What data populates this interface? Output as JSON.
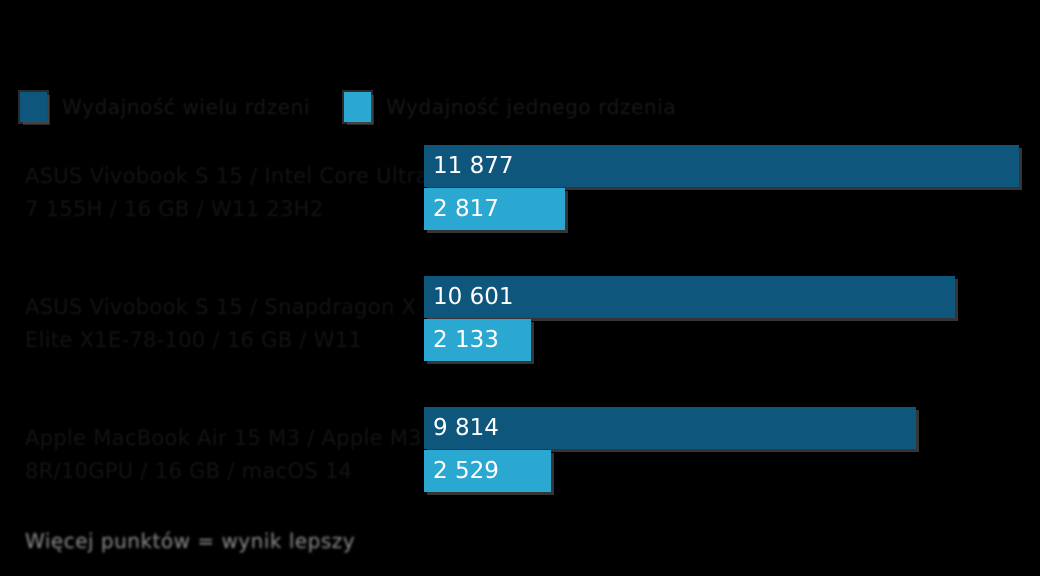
{
  "legend": {
    "items": [
      {
        "label": "Wydajność wielu rdzeni",
        "color": "#0E567C"
      },
      {
        "label": "Wydajność jednego rdzenia",
        "color": "#2BA8D2"
      }
    ]
  },
  "chart_data": {
    "type": "bar",
    "orientation": "horizontal",
    "title": "",
    "categories": [
      [
        "ASUS Vivobook S 15 / Intel Core Ultra",
        "7 155H / 16 GB / W11 23H2"
      ],
      [
        "ASUS Vivobook S 15 / Snapdragon X",
        "Elite X1E-78-100 / 16 GB / W11"
      ],
      [
        "Apple MacBook Air 15 M3 / Apple M3",
        "8R/10GPU / 16 GB / macOS 14"
      ]
    ],
    "series": [
      {
        "name": "Wydajność wielu rdzeni",
        "color": "#0E567C",
        "values": [
          11877,
          10601,
          9814
        ],
        "value_labels": [
          "11 877",
          "10 601",
          "9 814"
        ]
      },
      {
        "name": "Wydajność jednego rdzenia",
        "color": "#2BA8D2",
        "values": [
          2817,
          2133,
          2529
        ],
        "value_labels": [
          "2 817",
          "2 133",
          "2 529"
        ]
      }
    ],
    "xlim": [
      0,
      11877
    ],
    "grid": false,
    "legend_position": "top-left",
    "footnote": "Więcej punktów = wynik lepszy"
  },
  "footnote": "Więcej punktów = wynik lepszy"
}
